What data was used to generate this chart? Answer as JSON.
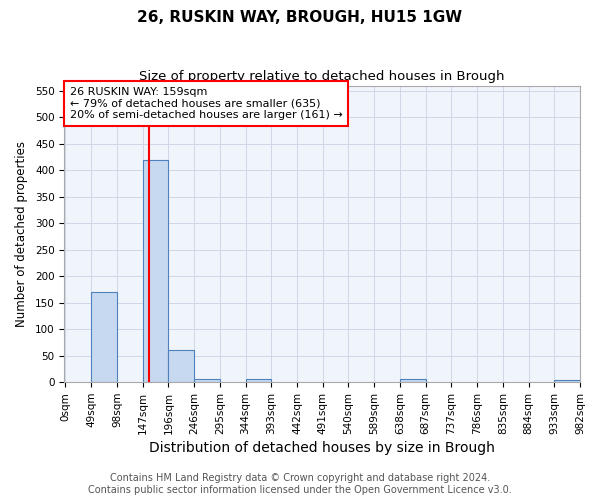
{
  "title1": "26, RUSKIN WAY, BROUGH, HU15 1GW",
  "title2": "Size of property relative to detached houses in Brough",
  "xlabel": "Distribution of detached houses by size in Brough",
  "ylabel": "Number of detached properties",
  "footnote": "Contains HM Land Registry data © Crown copyright and database right 2024.\nContains public sector information licensed under the Open Government Licence v3.0.",
  "bin_starts": [
    0,
    49,
    98,
    147,
    196,
    245,
    294,
    343,
    392,
    441,
    490,
    539,
    588,
    637,
    686,
    735,
    784,
    833,
    882,
    931
  ],
  "bin_labels": [
    "0sqm",
    "49sqm",
    "98sqm",
    "147sqm",
    "196sqm",
    "246sqm",
    "295sqm",
    "344sqm",
    "393sqm",
    "442sqm",
    "491sqm",
    "540sqm",
    "589sqm",
    "638sqm",
    "687sqm",
    "737sqm",
    "786sqm",
    "835sqm",
    "884sqm",
    "933sqm",
    "982sqm"
  ],
  "values": [
    0,
    170,
    0,
    420,
    60,
    7,
    0,
    7,
    0,
    0,
    0,
    0,
    0,
    7,
    0,
    0,
    0,
    0,
    0,
    5
  ],
  "bar_color": "#c6d9f0",
  "bar_edge_color": "#4f81bd",
  "vline_x": 159,
  "vline_color": "red",
  "ylim": [
    0,
    560
  ],
  "yticks": [
    0,
    50,
    100,
    150,
    200,
    250,
    300,
    350,
    400,
    450,
    500,
    550
  ],
  "annotation_text": "26 RUSKIN WAY: 159sqm\n← 79% of detached houses are smaller (635)\n20% of semi-detached houses are larger (161) →",
  "grid_color": "#d0d8e8",
  "bg_color": "#f0f4fb",
  "title1_fontsize": 11,
  "title2_fontsize": 9.5,
  "xlabel_fontsize": 10,
  "ylabel_fontsize": 8.5,
  "tick_fontsize": 7.5,
  "annot_fontsize": 8,
  "footnote_fontsize": 7
}
